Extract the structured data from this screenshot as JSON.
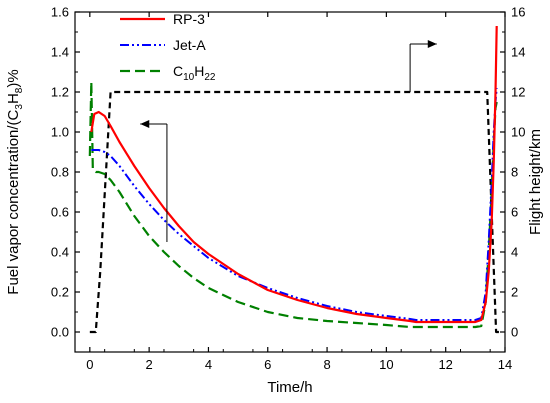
{
  "chart_data": {
    "type": "line",
    "xlabel": "Time/h",
    "ylabel_left": {
      "main": "Fuel vapor concentration/(C",
      "sub1": "3",
      "mid": "H",
      "sub2": "8",
      "end": ")%"
    },
    "ylabel_right": "Flight height/km",
    "xlim": [
      -0.5,
      14
    ],
    "ylim_left": [
      -0.1,
      1.6
    ],
    "ylim_right": [
      -1,
      16
    ],
    "x_ticks": [
      0,
      2,
      4,
      6,
      8,
      10,
      12,
      14
    ],
    "y_left_ticks": [
      0.0,
      0.2,
      0.4,
      0.6,
      0.8,
      1.0,
      1.2,
      1.4,
      1.6
    ],
    "y_right_ticks": [
      0,
      2,
      4,
      6,
      8,
      10,
      12,
      14,
      16
    ],
    "legend": [
      {
        "name": "RP-3",
        "color": "#ff0000",
        "dash": "solid"
      },
      {
        "name": "Jet-A",
        "color": "#0000ff",
        "dash": "dashdotdot"
      },
      {
        "name": "C",
        "sub1": "10",
        "mid": "H",
        "sub2": "22",
        "color": "#008000",
        "dash": "dashed"
      }
    ],
    "series": [
      {
        "name": "RP-3",
        "axis": "left",
        "color": "#ff0000",
        "x": [
          0.05,
          0.15,
          0.3,
          0.5,
          0.7,
          1.0,
          1.5,
          2,
          2.5,
          3,
          3.5,
          4,
          5,
          6,
          7,
          8,
          9,
          10,
          10.8,
          11,
          12,
          13,
          13.2,
          13.35,
          13.45,
          13.55,
          13.62,
          13.68,
          13.72
        ],
        "y": [
          1.0,
          1.09,
          1.1,
          1.08,
          1.03,
          0.95,
          0.83,
          0.72,
          0.62,
          0.53,
          0.45,
          0.39,
          0.29,
          0.21,
          0.16,
          0.12,
          0.09,
          0.07,
          0.055,
          0.05,
          0.05,
          0.05,
          0.06,
          0.15,
          0.3,
          0.55,
          0.85,
          1.2,
          1.53
        ]
      },
      {
        "name": "Jet-A",
        "axis": "left",
        "color": "#0000ff",
        "x": [
          0.05,
          0.15,
          0.3,
          0.5,
          0.7,
          1.0,
          1.5,
          2,
          2.5,
          3,
          3.5,
          4,
          5,
          6,
          7,
          8,
          9,
          10,
          10.8,
          11,
          12,
          13,
          13.2,
          13.35,
          13.45,
          13.55,
          13.62,
          13.68,
          13.72
        ],
        "y": [
          0.91,
          0.91,
          0.91,
          0.9,
          0.88,
          0.83,
          0.73,
          0.64,
          0.56,
          0.49,
          0.43,
          0.37,
          0.28,
          0.22,
          0.17,
          0.13,
          0.1,
          0.08,
          0.065,
          0.06,
          0.06,
          0.06,
          0.07,
          0.2,
          0.45,
          0.75,
          1.0,
          1.15,
          1.22
        ]
      },
      {
        "name": "C10H22",
        "axis": "left",
        "color": "#008000",
        "x": [
          0.0,
          0.05,
          0.1,
          0.2,
          0.3,
          0.5,
          0.7,
          1.0,
          1.5,
          2,
          2.5,
          3,
          3.5,
          4,
          5,
          6,
          7,
          8,
          9,
          10,
          10.8,
          11,
          12,
          13,
          13.2,
          13.35,
          13.45,
          13.55,
          13.62,
          13.68,
          13.72
        ],
        "y": [
          0.88,
          1.25,
          0.82,
          0.8,
          0.8,
          0.79,
          0.76,
          0.7,
          0.58,
          0.48,
          0.4,
          0.33,
          0.27,
          0.22,
          0.15,
          0.1,
          0.07,
          0.055,
          0.045,
          0.035,
          0.025,
          0.025,
          0.025,
          0.025,
          0.03,
          0.15,
          0.4,
          0.7,
          0.95,
          1.12,
          1.15
        ]
      },
      {
        "name": "Flight height",
        "axis": "right",
        "color": "#000000",
        "x": [
          0.0,
          0.2,
          0.35,
          0.7,
          12.0,
          13.4,
          13.7,
          13.8
        ],
        "y": [
          0,
          0,
          3,
          12,
          12,
          12,
          0,
          0
        ]
      }
    ],
    "annotations": [
      {
        "type": "arrow",
        "direction": "left",
        "axis": "left",
        "from_x": 2.6,
        "to_x": 1.7,
        "y": 1.04,
        "drop_to_y": 0.45
      },
      {
        "type": "arrow",
        "direction": "right",
        "axis": "right",
        "from_x": 10.8,
        "to_x": 11.7,
        "y": 14.4,
        "drop_to_y": 12.0
      }
    ]
  }
}
